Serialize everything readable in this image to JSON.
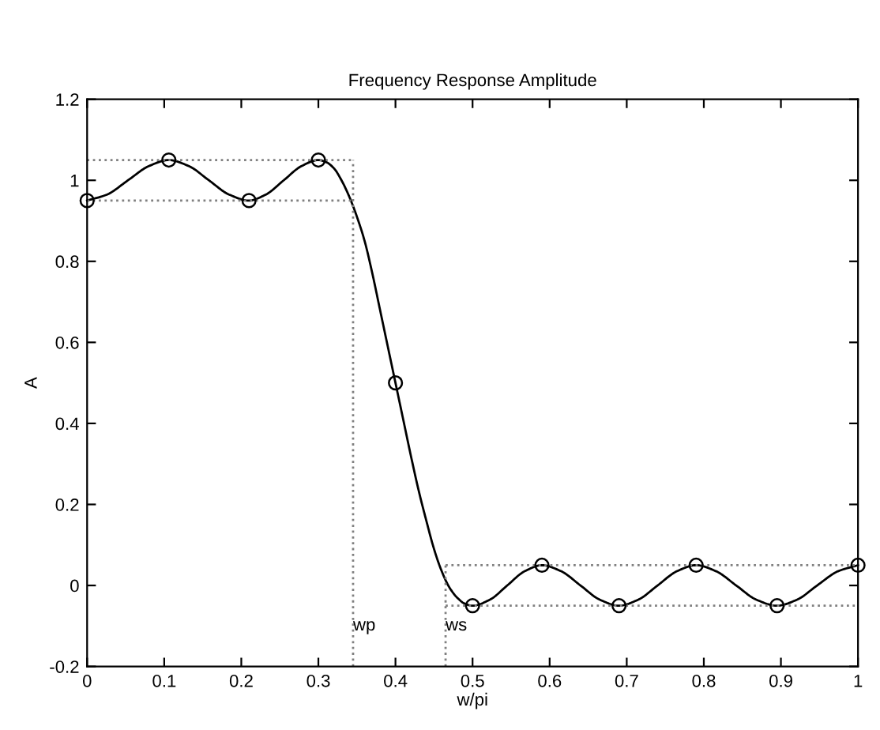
{
  "chart_data": {
    "type": "line",
    "title": "Frequency Response Amplitude",
    "xlabel": "w/pi",
    "ylabel": "A",
    "xlim": [
      0,
      1
    ],
    "ylim": [
      -0.2,
      1.2
    ],
    "xticks": [
      0,
      0.1,
      0.2,
      0.3,
      0.4,
      0.5,
      0.6,
      0.7,
      0.8,
      0.9,
      1
    ],
    "yticks": [
      -0.2,
      0,
      0.2,
      0.4,
      0.6,
      0.8,
      1,
      1.2
    ],
    "grid": false,
    "legend": false,
    "annotations": [
      {
        "text": "wp",
        "x": 0.345,
        "y": -0.1
      },
      {
        "text": "ws",
        "x": 0.465,
        "y": -0.1
      }
    ],
    "series": [
      {
        "color": "#000000",
        "line_style": "solid",
        "marker": "none",
        "x": [
          0,
          0.026,
          0.053,
          0.08,
          0.106,
          0.132,
          0.158,
          0.184,
          0.21,
          0.232,
          0.255,
          0.278,
          0.3,
          0.31,
          0.32,
          0.33,
          0.34,
          0.35,
          0.36,
          0.37,
          0.38,
          0.39,
          0.4,
          0.41,
          0.42,
          0.43,
          0.44,
          0.45,
          0.46,
          0.47,
          0.48,
          0.49,
          0.5,
          0.5225,
          0.545,
          0.5675,
          0.59,
          0.615,
          0.64,
          0.665,
          0.69,
          0.715,
          0.74,
          0.765,
          0.79,
          0.816,
          0.842,
          0.868,
          0.895,
          0.921,
          0.947,
          0.974,
          1
        ],
        "values": [
          0.95,
          0.965,
          1.0,
          1.035,
          1.05,
          1.035,
          1.0,
          0.965,
          0.95,
          0.965,
          1.0,
          1.035,
          1.05,
          1.045,
          1.03,
          1.0,
          0.96,
          0.91,
          0.85,
          0.77,
          0.68,
          0.59,
          0.5,
          0.41,
          0.32,
          0.235,
          0.16,
          0.09,
          0.035,
          -0.005,
          -0.03,
          -0.045,
          -0.05,
          -0.035,
          0.0,
          0.035,
          0.05,
          0.035,
          0.0,
          -0.035,
          -0.05,
          -0.035,
          0.0,
          0.035,
          0.05,
          0.035,
          0.0,
          -0.035,
          -0.05,
          -0.035,
          0.0,
          0.035,
          0.05
        ]
      },
      {
        "type": "scatter",
        "color": "#000000",
        "marker": "circle",
        "x": [
          0,
          0.106,
          0.21,
          0.3,
          0.4,
          0.5,
          0.59,
          0.69,
          0.79,
          0.895,
          1.0
        ],
        "values": [
          0.95,
          1.05,
          0.95,
          1.05,
          0.5,
          -0.05,
          0.05,
          -0.05,
          0.05,
          -0.05,
          0.05
        ]
      },
      {
        "type": "line",
        "color": "#808080",
        "line_style": "dotted",
        "marker": "none",
        "x": [
          0,
          0.345
        ],
        "values": [
          1.05,
          1.05
        ]
      },
      {
        "type": "line",
        "color": "#808080",
        "line_style": "dotted",
        "marker": "none",
        "x": [
          0,
          0.345
        ],
        "values": [
          0.95,
          0.95
        ]
      },
      {
        "type": "line",
        "color": "#808080",
        "line_style": "dotted",
        "marker": "none",
        "x": [
          0.345,
          0.345
        ],
        "values": [
          -0.2,
          1.05
        ]
      },
      {
        "type": "line",
        "color": "#808080",
        "line_style": "dotted",
        "marker": "none",
        "x": [
          0.465,
          1
        ],
        "values": [
          0.05,
          0.05
        ]
      },
      {
        "type": "line",
        "color": "#808080",
        "line_style": "dotted",
        "marker": "none",
        "x": [
          0.465,
          1
        ],
        "values": [
          -0.05,
          -0.05
        ]
      },
      {
        "type": "line",
        "color": "#808080",
        "line_style": "dotted",
        "marker": "none",
        "x": [
          0.465,
          0.465
        ],
        "values": [
          -0.2,
          0.05
        ]
      }
    ]
  }
}
